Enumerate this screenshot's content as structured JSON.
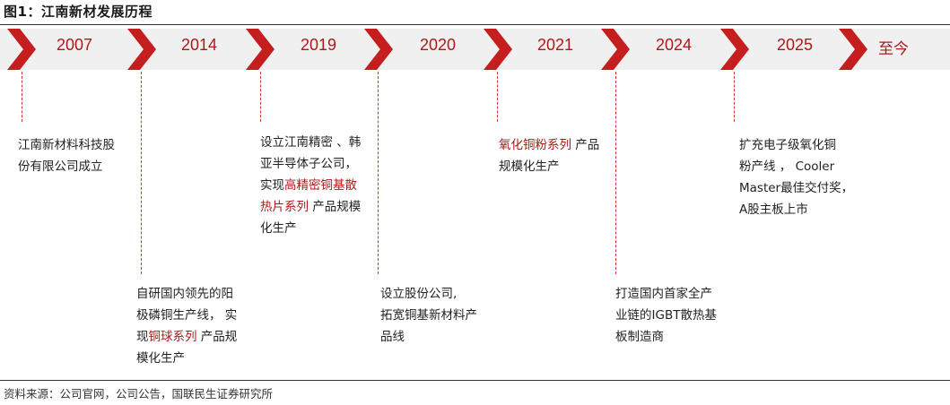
{
  "title": "图1：江南新材发展历程",
  "source": "资料来源：公司官网，公司公告，国联民生证券研究所",
  "colors": {
    "accent": "#b01818",
    "chevron": "#c41e1e",
    "band": "#f0f0f0"
  },
  "milestones": [
    {
      "year": "2007",
      "parts": [
        "江南新材料科技股",
        "份有限公司成立"
      ]
    },
    {
      "year": "2014",
      "parts": [
        "自研国内领先的阳",
        "极磷铜生产线， 实",
        "现",
        "铜球系列",
        " 产品规",
        "模化生产"
      ]
    },
    {
      "year": "2019",
      "parts": [
        "设立江南精密 、韩",
        "亚半导体子公司，",
        "实现",
        "高精密铜基散",
        "热片系列",
        " 产品规模",
        "化生产"
      ]
    },
    {
      "year": "2020",
      "parts": [
        "设立股份公司,",
        "拓宽铜基新材料产",
        "品线"
      ]
    },
    {
      "year": "2021",
      "parts": [
        "氧化铜粉系列",
        " 产品",
        "规模化生产"
      ]
    },
    {
      "year": "2024",
      "parts": [
        "打造国内首家全产",
        "业链的IGBT散热基",
        "板制造商"
      ]
    },
    {
      "year": "2025",
      "parts": [
        "扩充电子级氧化铜",
        "粉产线 ， Cooler",
        "Master最佳交付奖，",
        "A股主板上市"
      ]
    },
    {
      "year": "至今"
    }
  ]
}
